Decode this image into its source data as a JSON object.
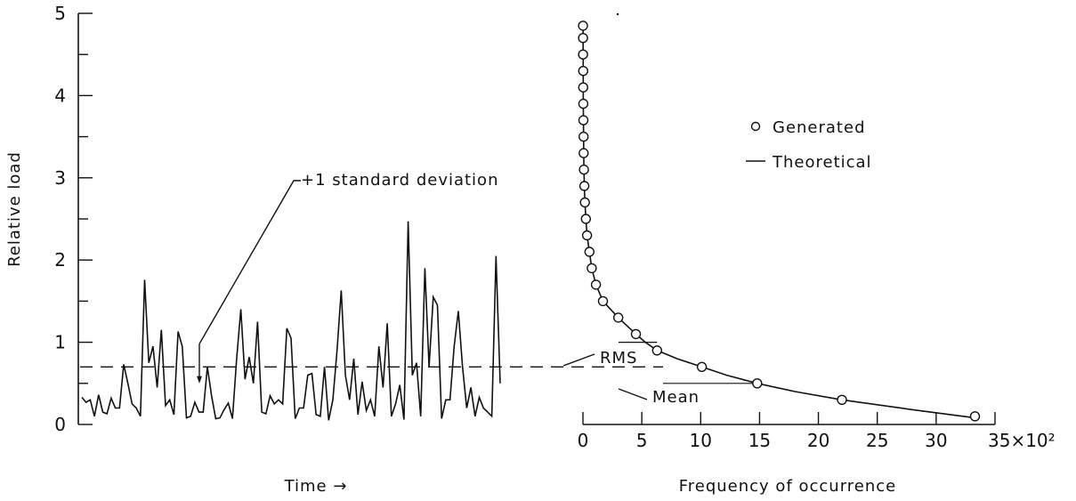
{
  "chart_data": [
    {
      "type": "line",
      "ylabel": "Relative load",
      "xlabel": "Time →",
      "ylim": [
        0,
        5
      ],
      "yticks": [
        "0",
        "1",
        "2",
        "3",
        "4",
        "5"
      ],
      "grid": false,
      "series": [
        {
          "values": [
            0.33,
            0.27,
            0.3,
            0.1,
            0.36,
            0.15,
            0.13,
            0.32,
            0.2,
            0.2,
            0.73,
            0.5,
            0.25,
            0.2,
            0.1,
            1.76,
            0.75,
            0.95,
            0.45,
            1.15,
            0.23,
            0.3,
            0.12,
            1.13,
            0.95,
            0.08,
            0.1,
            0.27,
            0.15,
            0.15,
            0.7,
            0.35,
            0.07,
            0.08,
            0.18,
            0.26,
            0.07,
            0.8,
            1.4,
            0.55,
            0.82,
            0.5,
            1.25,
            0.15,
            0.13,
            0.35,
            0.25,
            0.3,
            0.25,
            1.17,
            1.05,
            0.07,
            0.2,
            0.2,
            0.6,
            0.62,
            0.12,
            0.1,
            0.7,
            0.05,
            0.3,
            0.9,
            1.63,
            0.6,
            0.3,
            0.8,
            0.12,
            0.52,
            0.17,
            0.3,
            0.1,
            0.95,
            0.45,
            1.23,
            0.1,
            0.25,
            0.48,
            0.06,
            2.47,
            0.6,
            0.75,
            0.1,
            1.9,
            0.7,
            1.55,
            1.45,
            0.07,
            0.3,
            0.3,
            0.95,
            1.38,
            0.7,
            0.2,
            0.45,
            0.1,
            0.33,
            0.2,
            0.15,
            0.1,
            2.05,
            0.5
          ]
        }
      ],
      "annotations": {
        "sd": "+1 standard deviation",
        "sd_value": 0.98,
        "rms": "RMS",
        "rms_value": 0.7,
        "mean": "Mean",
        "mean_value": 0.5
      }
    },
    {
      "type": "line",
      "xlabel": "Frequency of occurrence",
      "x_unit": "×10²",
      "xlim": [
        0,
        35
      ],
      "xticks": [
        "0",
        "5",
        "10",
        "15",
        "20",
        "25",
        "30",
        "35×10²"
      ],
      "legend_position": "top-right",
      "series": [
        {
          "name": "Generated",
          "marker": "circle",
          "points": [
            [
              33.3,
              0.1
            ],
            [
              22.0,
              0.3
            ],
            [
              14.8,
              0.5
            ],
            [
              10.1,
              0.7
            ],
            [
              6.3,
              0.9
            ],
            [
              4.5,
              1.1
            ],
            [
              3.0,
              1.3
            ],
            [
              1.7,
              1.5
            ],
            [
              1.1,
              1.7
            ],
            [
              0.75,
              1.9
            ],
            [
              0.55,
              2.1
            ],
            [
              0.35,
              2.3
            ],
            [
              0.25,
              2.5
            ],
            [
              0.17,
              2.7
            ],
            [
              0.12,
              2.9
            ],
            [
              0.08,
              3.1
            ],
            [
              0.06,
              3.3
            ],
            [
              0.05,
              3.5
            ],
            [
              0.04,
              3.7
            ],
            [
              0.03,
              3.9
            ],
            [
              0.02,
              4.1
            ],
            [
              0.02,
              4.3
            ],
            [
              0.01,
              4.5
            ],
            [
              0.01,
              4.7
            ],
            [
              0.01,
              4.85
            ]
          ]
        },
        {
          "name": "Theoretical",
          "marker": "line",
          "points": [
            [
              33.3,
              0.08
            ],
            [
              28.0,
              0.18
            ],
            [
              22.0,
              0.3
            ],
            [
              18.0,
              0.4
            ],
            [
              14.8,
              0.5
            ],
            [
              12.2,
              0.6
            ],
            [
              10.1,
              0.7
            ],
            [
              8.0,
              0.8
            ],
            [
              6.3,
              0.9
            ],
            [
              5.3,
              1.0
            ],
            [
              4.5,
              1.1
            ],
            [
              3.0,
              1.3
            ],
            [
              1.7,
              1.5
            ],
            [
              1.1,
              1.7
            ],
            [
              0.75,
              1.9
            ],
            [
              0.55,
              2.1
            ],
            [
              0.35,
              2.3
            ],
            [
              0.25,
              2.5
            ],
            [
              0.17,
              2.7
            ],
            [
              0.12,
              2.9
            ],
            [
              0.08,
              3.1
            ],
            [
              0.05,
              3.5
            ],
            [
              0.03,
              3.9
            ],
            [
              0.02,
              4.3
            ],
            [
              0.01,
              4.85
            ]
          ]
        }
      ]
    }
  ]
}
